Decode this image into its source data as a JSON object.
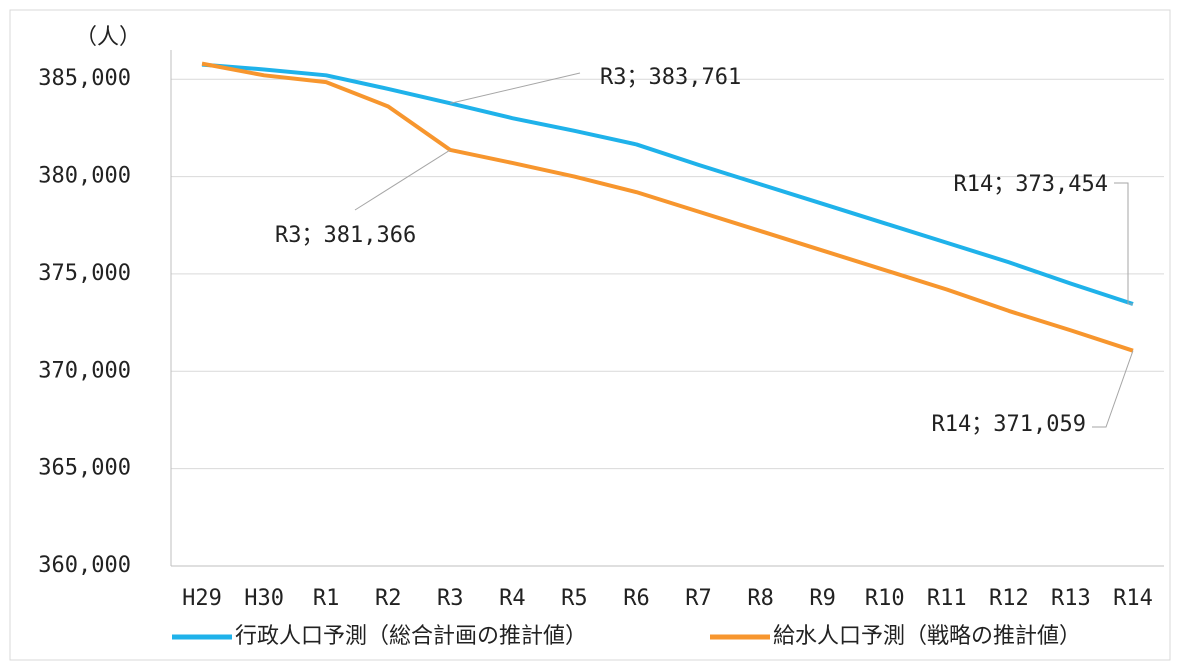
{
  "chart_data": {
    "type": "line",
    "y_label": "（人）",
    "categories": [
      "H29",
      "H30",
      "R1",
      "R2",
      "R3",
      "R4",
      "R5",
      "R6",
      "R7",
      "R8",
      "R9",
      "R10",
      "R11",
      "R12",
      "R13",
      "R14"
    ],
    "series": [
      {
        "name": "行政人口予測（総合計画の推計値）",
        "color": "#1fb2ea",
        "values": [
          385750,
          385500,
          385200,
          384500,
          383761,
          383000,
          382350,
          381650,
          380600,
          379600,
          378600,
          377600,
          376600,
          375600,
          374500,
          373454
        ],
        "value_labels": [
          null,
          null,
          null,
          null,
          "R3；383,761",
          null,
          null,
          null,
          null,
          null,
          null,
          null,
          null,
          null,
          null,
          "R14；373,454"
        ]
      },
      {
        "name": "給水人口予測（戦略の推計値）",
        "color": "#f7962e",
        "values": [
          385800,
          385200,
          384850,
          383600,
          381366,
          380700,
          380000,
          379200,
          378200,
          377200,
          376200,
          375200,
          374200,
          373100,
          372100,
          371059
        ],
        "value_labels": [
          null,
          null,
          null,
          null,
          "R3；381,366",
          null,
          null,
          null,
          null,
          null,
          null,
          null,
          null,
          null,
          null,
          "R14；371,059"
        ]
      }
    ],
    "ylim": [
      360000,
      386500
    ],
    "yticks": [
      {
        "value": 360000,
        "label": "360,000"
      },
      {
        "value": 365000,
        "label": "365,000"
      },
      {
        "value": 370000,
        "label": "370,000"
      },
      {
        "value": 375000,
        "label": "375,000"
      },
      {
        "value": 380000,
        "label": "380,000"
      },
      {
        "value": 385000,
        "label": "385,000"
      }
    ],
    "grid": true,
    "legend": "bottom"
  }
}
